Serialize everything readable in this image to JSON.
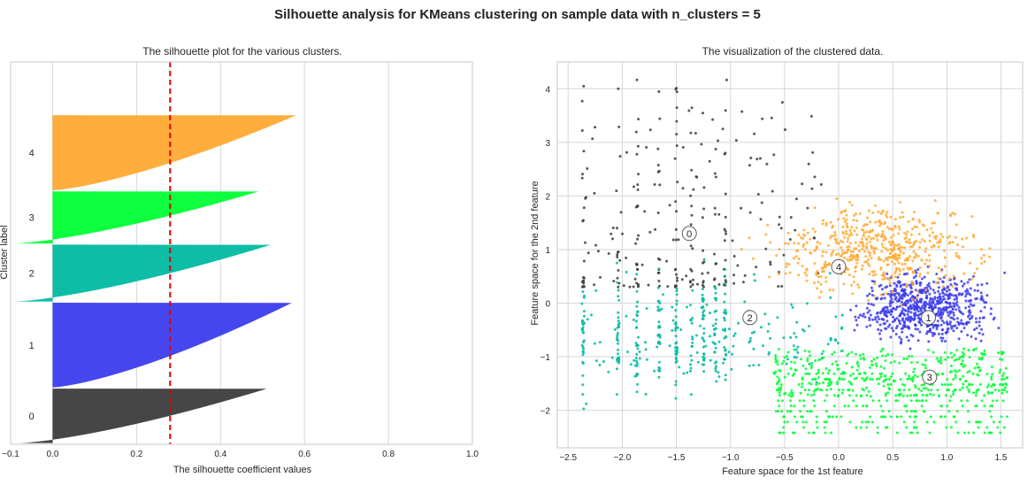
{
  "suptitle": "Silhouette analysis for KMeans clustering on sample data with n_clusters = 5",
  "colors": {
    "cluster_0": "#3c3c3c",
    "cluster_1": "#3c3cee",
    "cluster_2": "#00b9a0",
    "cluster_3": "#00ff33",
    "cluster_4": "#ffaa33",
    "average_line": "#e00000",
    "grid": "#d6d6d6",
    "axes_border": "#c8c8c8"
  },
  "chart_data": [
    {
      "type": "silhouette",
      "title": "The silhouette plot for the various clusters.",
      "xlabel": "The silhouette coefficient values",
      "ylabel": "Cluster label",
      "xlim": [
        -0.1,
        1.0
      ],
      "xticks": [
        -0.1,
        0.0,
        0.2,
        0.4,
        0.6,
        0.8,
        1.0
      ],
      "xtick_labels": [
        "−0.1",
        "0.0",
        "0.2",
        "0.4",
        "0.6",
        "0.8",
        "1.0"
      ],
      "average_silhouette": 0.28,
      "ylim": [
        0,
        3160
      ],
      "clusters": [
        {
          "label": "0",
          "size": 450,
          "max": 0.51,
          "min": -0.08
        },
        {
          "label": "1",
          "size": 700,
          "max": 0.57,
          "min": 0.0
        },
        {
          "label": "2",
          "size": 470,
          "max": 0.52,
          "min": -0.09
        },
        {
          "label": "3",
          "size": 430,
          "max": 0.49,
          "min": -0.09
        },
        {
          "label": "4",
          "size": 620,
          "max": 0.58,
          "min": 0.0
        }
      ]
    },
    {
      "type": "scatter",
      "title": "The visualization of the clustered data.",
      "xlabel": "Feature space for the 1st feature",
      "ylabel": "Feature space for the 2nd feature",
      "xlim": [
        -2.6,
        1.7
      ],
      "ylim": [
        -2.7,
        4.5
      ],
      "xticks": [
        -2.5,
        -2.0,
        -1.5,
        -1.0,
        -0.5,
        0.0,
        0.5,
        1.0,
        1.5
      ],
      "xtick_labels": [
        "−2.5",
        "−2.0",
        "−1.5",
        "−1.0",
        "−0.5",
        "0.0",
        "0.5",
        "1.0",
        "1.5"
      ],
      "yticks": [
        -2,
        -1,
        0,
        1,
        2,
        3,
        4
      ],
      "ytick_labels": [
        "−2",
        "−1",
        "0",
        "1",
        "2",
        "3",
        "4"
      ],
      "centers": [
        {
          "label": "0",
          "x": -1.38,
          "y": 1.3
        },
        {
          "label": "1",
          "x": 0.83,
          "y": -0.27
        },
        {
          "label": "2",
          "x": -0.82,
          "y": -0.27
        },
        {
          "label": "3",
          "x": 0.84,
          "y": -1.38
        },
        {
          "label": "4",
          "x": 0.0,
          "y": 0.68
        }
      ],
      "clusters": [
        {
          "label": "0",
          "x_range": [
            -2.38,
            -0.15
          ],
          "y_range": [
            0.3,
            4.2
          ],
          "count": 260
        },
        {
          "label": "1",
          "x_range": [
            0.0,
            1.56
          ],
          "y_range": [
            -0.9,
            0.75
          ],
          "count": 700
        },
        {
          "label": "2",
          "x_range": [
            -2.38,
            0.05
          ],
          "y_range": [
            -2.1,
            0.9
          ],
          "count": 380
        },
        {
          "label": "3",
          "x_range": [
            -0.6,
            1.56
          ],
          "y_range": [
            -2.45,
            -0.75
          ],
          "count": 620
        },
        {
          "label": "4",
          "x_range": [
            -0.9,
            1.56
          ],
          "y_range": [
            -0.05,
            2.05
          ],
          "count": 560
        }
      ]
    }
  ]
}
